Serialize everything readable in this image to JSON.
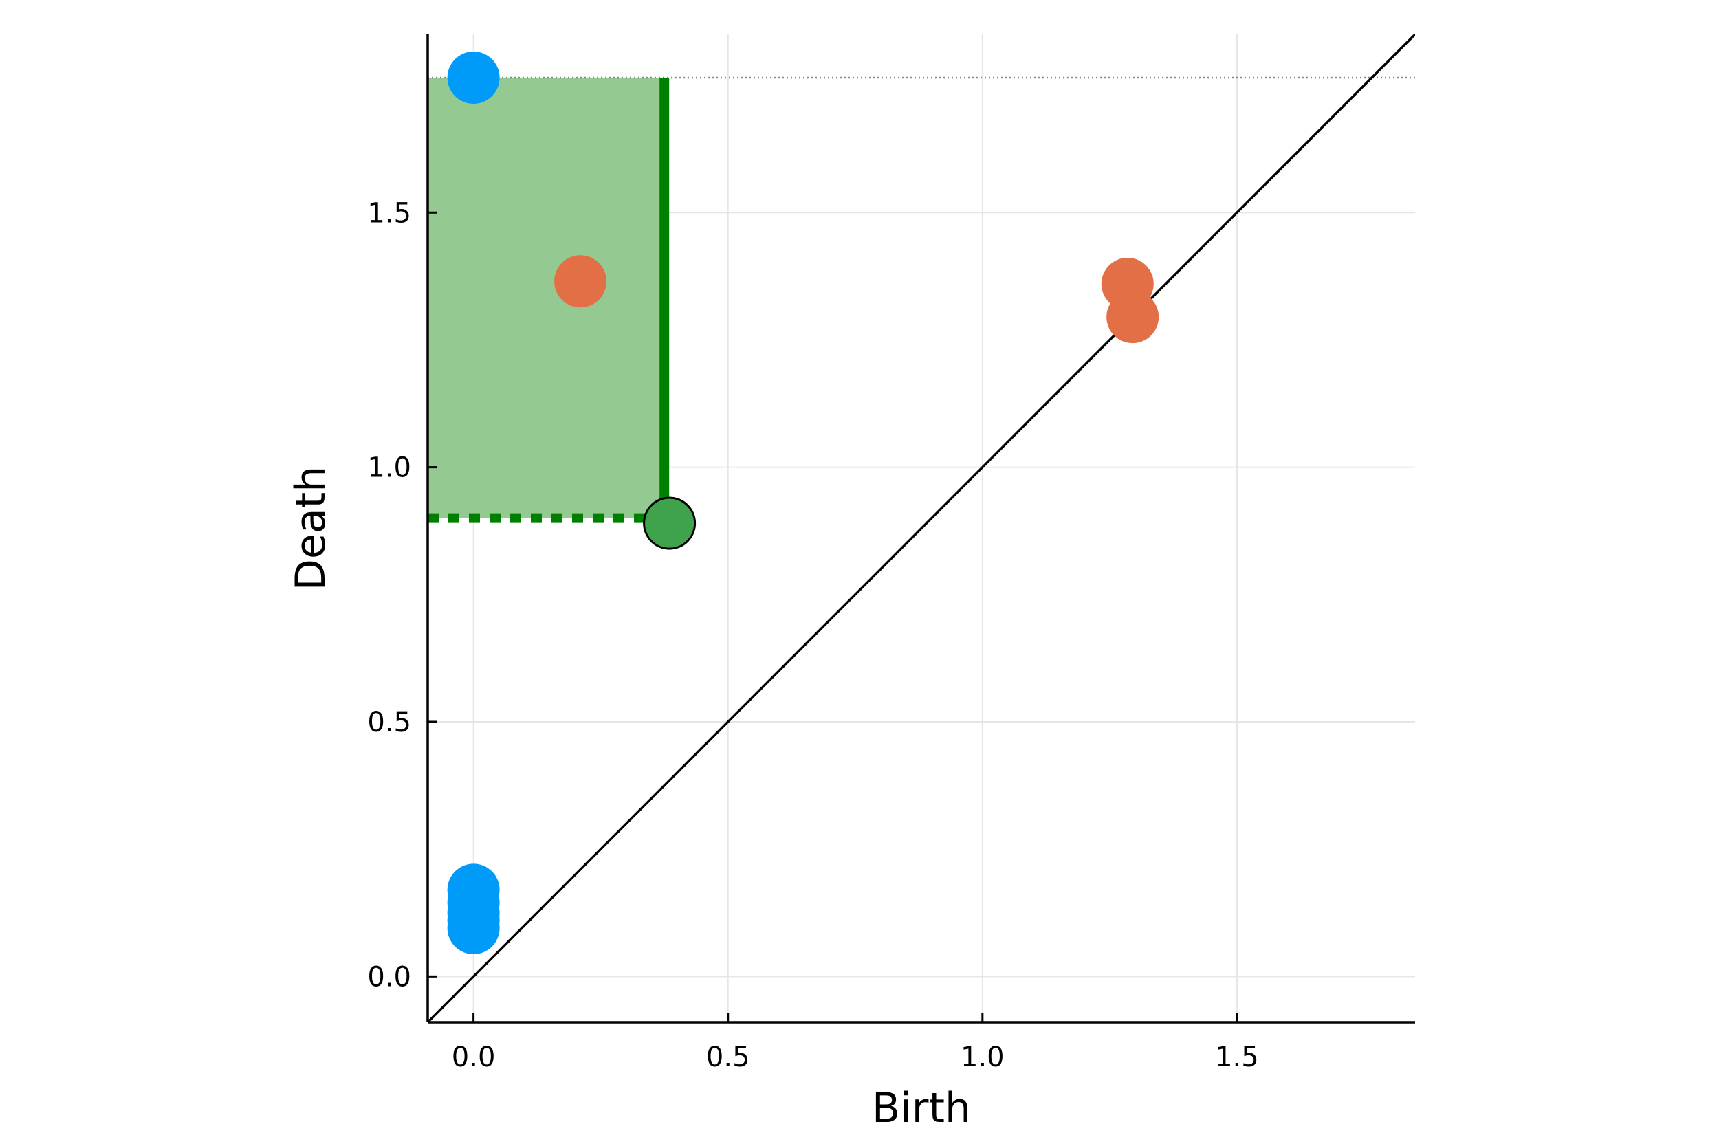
{
  "chart_data": {
    "type": "scatter",
    "title": "",
    "xlabel": "Birth",
    "ylabel": "Death",
    "xlim": [
      -0.09,
      1.85
    ],
    "ylim": [
      -0.09,
      1.85
    ],
    "x_ticks": [
      0.0,
      0.5,
      1.0,
      1.5
    ],
    "y_ticks": [
      0.0,
      0.5,
      1.0,
      1.5
    ],
    "x_tick_labels": [
      "0.0",
      "0.5",
      "1.0",
      "1.5"
    ],
    "y_tick_labels": [
      "0.0",
      "0.5",
      "1.0",
      "1.5"
    ],
    "grid": true,
    "legend": "none",
    "infinity_line_y": 1.765,
    "diagonal": true,
    "colors": {
      "series_1": "#009af9",
      "series_2": "#e26f46",
      "highlight": "#3fa34d",
      "highlight_line": "#008000",
      "highlight_region": "#94c991",
      "grid": "#e6e6e6",
      "axis": "#000000"
    },
    "series": [
      {
        "points": [
          [
            0.0,
            1.765
          ],
          [
            0.0,
            0.17
          ],
          [
            0.0,
            0.145
          ],
          [
            0.0,
            0.125
          ],
          [
            0.0,
            0.11
          ],
          [
            0.0,
            0.095
          ]
        ]
      },
      {
        "points": [
          [
            0.21,
            1.365
          ],
          [
            1.285,
            1.36
          ],
          [
            1.295,
            1.295
          ]
        ]
      }
    ],
    "highlight": {
      "point": [
        0.385,
        0.89
      ],
      "region": {
        "x": [
          -0.09,
          0.375
        ],
        "y": [
          0.9,
          1.765
        ]
      }
    }
  }
}
